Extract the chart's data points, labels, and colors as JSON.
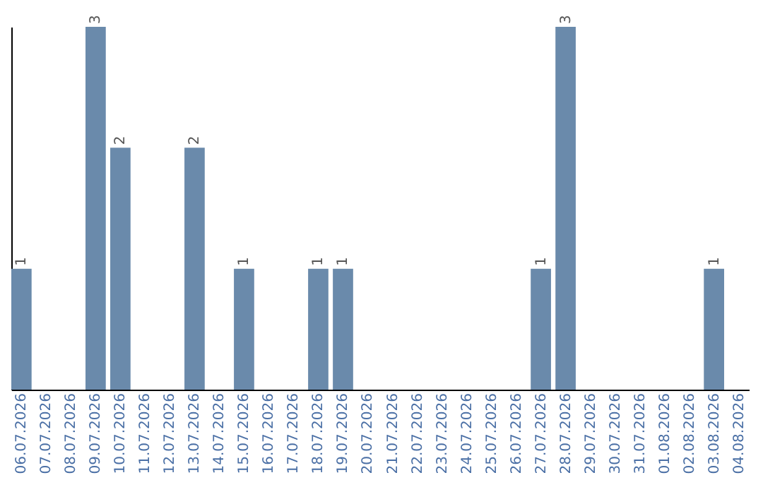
{
  "chart_data": {
    "type": "bar",
    "categories": [
      "06.07.2026",
      "07.07.2026",
      "08.07.2026",
      "09.07.2026",
      "10.07.2026",
      "11.07.2026",
      "12.07.2026",
      "13.07.2026",
      "14.07.2026",
      "15.07.2026",
      "16.07.2026",
      "17.07.2026",
      "18.07.2026",
      "19.07.2026",
      "20.07.2026",
      "21.07.2026",
      "22.07.2026",
      "23.07.2026",
      "24.07.2026",
      "25.07.2026",
      "26.07.2026",
      "27.07.2026",
      "28.07.2026",
      "29.07.2026",
      "30.07.2026",
      "31.07.2026",
      "01.08.2026",
      "02.08.2026",
      "03.08.2026",
      "04.08.2026"
    ],
    "values": [
      1,
      0,
      0,
      3,
      2,
      0,
      0,
      2,
      0,
      1,
      0,
      0,
      1,
      1,
      0,
      0,
      0,
      0,
      0,
      0,
      0,
      1,
      3,
      0,
      0,
      0,
      0,
      0,
      1,
      0
    ],
    "value_labels": [
      "1",
      null,
      null,
      "3",
      "2",
      null,
      null,
      "2",
      null,
      "1",
      null,
      null,
      "1",
      "1",
      null,
      null,
      null,
      null,
      null,
      null,
      null,
      "1",
      "3",
      null,
      null,
      null,
      null,
      null,
      "1",
      null
    ],
    "color": "#6a8aab",
    "ylim": [
      0,
      3
    ],
    "tick_labels": "x",
    "grid": false
  }
}
